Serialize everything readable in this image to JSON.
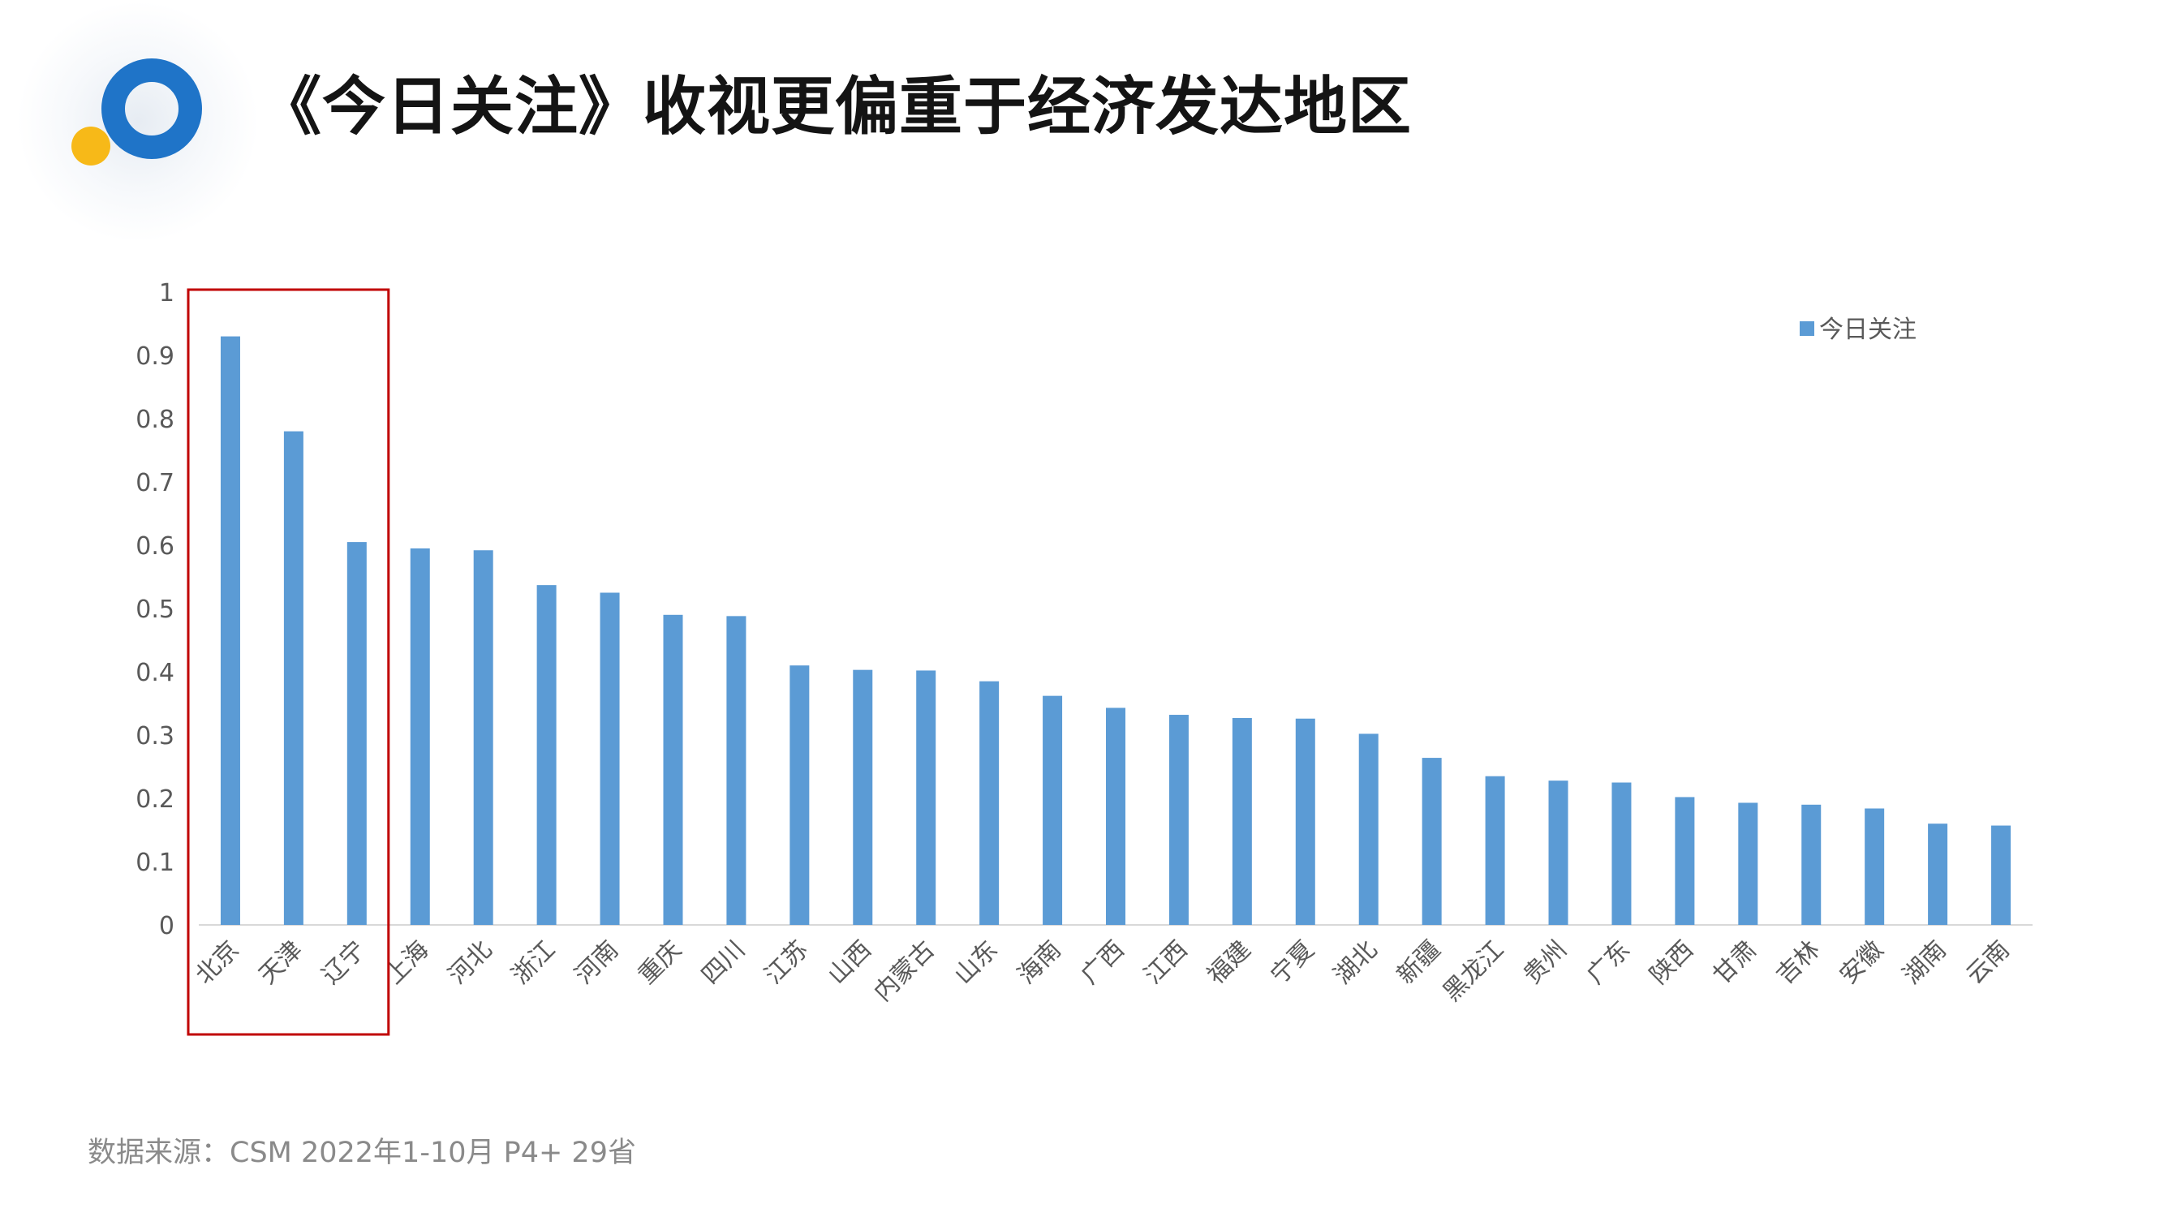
{
  "title": "《今日关注》收视更偏重于经济发达地区",
  "source": "数据来源：CSM 2022年1-10月 P4+ 29省",
  "colors": {
    "bar": "#5b9bd5",
    "highlight_box": "#c00000",
    "logo_blue": "#1f74c8",
    "logo_yellow": "#f7b918"
  },
  "chart_data": {
    "type": "bar",
    "categories": [
      "北京",
      "天津",
      "辽宁",
      "上海",
      "河北",
      "浙江",
      "河南",
      "重庆",
      "四川",
      "江苏",
      "山西",
      "内蒙古",
      "山东",
      "海南",
      "广西",
      "江西",
      "福建",
      "宁夏",
      "湖北",
      "新疆",
      "黑龙江",
      "贵州",
      "广东",
      "陕西",
      "甘肃",
      "吉林",
      "安徽",
      "湖南",
      "云南"
    ],
    "series": [
      {
        "name": "今日关注",
        "values": [
          0.93,
          0.78,
          0.605,
          0.595,
          0.592,
          0.537,
          0.525,
          0.49,
          0.488,
          0.41,
          0.403,
          0.402,
          0.385,
          0.362,
          0.343,
          0.332,
          0.327,
          0.326,
          0.302,
          0.264,
          0.235,
          0.228,
          0.225,
          0.202,
          0.193,
          0.19,
          0.184,
          0.16,
          0.157
        ]
      }
    ],
    "ylim": [
      0,
      1
    ],
    "yticks": [
      "0",
      "0.1",
      "0.2",
      "0.3",
      "0.4",
      "0.5",
      "0.6",
      "0.7",
      "0.8",
      "0.9",
      "1"
    ],
    "grid": false,
    "legend": "top-right",
    "highlight_categories": [
      "北京",
      "天津",
      "辽宁"
    ]
  }
}
